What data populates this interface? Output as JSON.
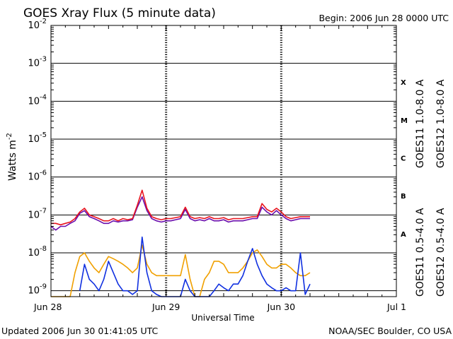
{
  "chart_data": {
    "type": "line",
    "title": "GOES Xray Flux (5 minute data)",
    "begin": "Begin:  2006 Jun 28 0000 UTC",
    "xlabel": "Universal Time",
    "ylabel": "Watts m",
    "ylabel_exp": "-2",
    "updated": "Updated 2006 Jun 30 01:41:05 UTC",
    "credit": "NOAA/SEC Boulder, CO USA",
    "x_ticks": [
      "Jun 28",
      "Jun 29",
      "Jun 30",
      "Jul 1"
    ],
    "xlim": [
      0,
      72
    ],
    "y_scale": "log",
    "ylim": [
      7e-10,
      0.01
    ],
    "y_ticks": [
      {
        "base": "10",
        "exp": "-2",
        "value": 0.01
      },
      {
        "base": "10",
        "exp": "-3",
        "value": 0.001
      },
      {
        "base": "10",
        "exp": "-4",
        "value": 0.0001
      },
      {
        "base": "10",
        "exp": "-5",
        "value": 1e-05
      },
      {
        "base": "10",
        "exp": "-6",
        "value": 1e-06
      },
      {
        "base": "10",
        "exp": "-7",
        "value": 1e-07
      },
      {
        "base": "10",
        "exp": "-8",
        "value": 1e-08
      },
      {
        "base": "10",
        "exp": "-9",
        "value": 1e-09
      }
    ],
    "flare_classes": [
      {
        "label": "X",
        "value": 0.00032
      },
      {
        "label": "M",
        "value": 3.2e-05
      },
      {
        "label": "C",
        "value": 3.2e-06
      },
      {
        "label": "B",
        "value": 3.2e-07
      },
      {
        "label": "A",
        "value": 3.2e-08
      }
    ],
    "series": [
      {
        "name": "GOES11 1.0-8.0 A",
        "color": "#6a0dad",
        "x": [
          0,
          1,
          2,
          3,
          4,
          5,
          6,
          7,
          8,
          9,
          10,
          11,
          12,
          13,
          14,
          15,
          16,
          17,
          18,
          19,
          20,
          21,
          22,
          23,
          24,
          25,
          26,
          27,
          28,
          29,
          30,
          31,
          32,
          33,
          34,
          35,
          36,
          37,
          38,
          39,
          40,
          41,
          42,
          43,
          44,
          45,
          46,
          47,
          48,
          49,
          50,
          51,
          52,
          53,
          54
        ],
        "values": [
          5e-08,
          4e-08,
          5e-08,
          5e-08,
          6e-08,
          7e-08,
          1.1e-07,
          1.3e-07,
          9e-08,
          8e-08,
          7e-08,
          6e-08,
          6e-08,
          7e-08,
          6.5e-08,
          7e-08,
          7e-08,
          7.5e-08,
          1.6e-07,
          3e-07,
          1.3e-07,
          8e-08,
          7e-08,
          6.5e-08,
          7e-08,
          7e-08,
          7.5e-08,
          8e-08,
          1.4e-07,
          8e-08,
          7e-08,
          7.5e-08,
          7e-08,
          8e-08,
          7e-08,
          7e-08,
          7.5e-08,
          6.5e-08,
          7e-08,
          7e-08,
          7e-08,
          7.5e-08,
          8e-08,
          8e-08,
          1.6e-07,
          1.2e-07,
          1e-07,
          1.3e-07,
          1e-07,
          8e-08,
          7e-08,
          7.5e-08,
          8e-08,
          8e-08,
          8e-08
        ]
      },
      {
        "name": "GOES12 1.0-8.0 A",
        "color": "#e8141e",
        "x": [
          0,
          1,
          2,
          3,
          4,
          5,
          6,
          7,
          8,
          9,
          10,
          11,
          12,
          13,
          14,
          15,
          16,
          17,
          18,
          19,
          20,
          21,
          22,
          23,
          24,
          25,
          26,
          27,
          28,
          29,
          30,
          31,
          32,
          33,
          34,
          35,
          36,
          37,
          38,
          39,
          40,
          41,
          42,
          43,
          44,
          45,
          46,
          47,
          48,
          49,
          50,
          51,
          52,
          53,
          54
        ],
        "values": [
          6e-08,
          6e-08,
          5.5e-08,
          6e-08,
          6.5e-08,
          8e-08,
          1.2e-07,
          1.5e-07,
          1e-07,
          9e-08,
          8e-08,
          7e-08,
          7e-08,
          8e-08,
          7e-08,
          8e-08,
          7.5e-08,
          8e-08,
          1.8e-07,
          4.5e-07,
          1.5e-07,
          9e-08,
          8e-08,
          7.5e-08,
          8e-08,
          8e-08,
          8.5e-08,
          9e-08,
          1.6e-07,
          9e-08,
          8e-08,
          8.5e-08,
          8e-08,
          9e-08,
          8e-08,
          8e-08,
          8.5e-08,
          7.5e-08,
          8e-08,
          8e-08,
          8e-08,
          8.5e-08,
          9e-08,
          9e-08,
          2e-07,
          1.4e-07,
          1.2e-07,
          1.5e-07,
          1.2e-07,
          9e-08,
          8e-08,
          8.5e-08,
          9e-08,
          9e-08,
          9e-08
        ]
      },
      {
        "name": "GOES11 0.5-4.0 A",
        "color": "#f0a000",
        "x": [
          0,
          2,
          4,
          5,
          6,
          7,
          8,
          9,
          10,
          11,
          12,
          13,
          14,
          15,
          16,
          17,
          18,
          19,
          20,
          21,
          22,
          23,
          24,
          25,
          26,
          27,
          28,
          29,
          30,
          31,
          32,
          33,
          34,
          35,
          36,
          37,
          38,
          39,
          40,
          41,
          42,
          43,
          44,
          45,
          46,
          47,
          48,
          49,
          50,
          51,
          52,
          53,
          54
        ],
        "values": [
          7e-10,
          7e-10,
          7e-10,
          3e-09,
          8e-09,
          1e-08,
          6e-09,
          4e-09,
          3e-09,
          5e-09,
          8e-09,
          7e-09,
          6e-09,
          5e-09,
          4e-09,
          3e-09,
          4e-09,
          1.6e-08,
          5e-09,
          3e-09,
          2.5e-09,
          2.5e-09,
          2.5e-09,
          2.5e-09,
          2.5e-09,
          2.5e-09,
          9e-09,
          2e-09,
          7e-10,
          7e-10,
          2e-09,
          3e-09,
          6e-09,
          6e-09,
          5e-09,
          3e-09,
          3e-09,
          3e-09,
          4e-09,
          6e-09,
          1e-08,
          1.2e-08,
          8e-09,
          5e-09,
          4e-09,
          4e-09,
          5e-09,
          5e-09,
          4e-09,
          3e-09,
          2.5e-09,
          2.5e-09,
          3e-09
        ]
      },
      {
        "name": "GOES12 0.5-4.0 A",
        "color": "#1030e0",
        "x": [
          6,
          7,
          8,
          9,
          10,
          11,
          12,
          13,
          14,
          15,
          16,
          17,
          18,
          19,
          20,
          21,
          22,
          23,
          24,
          25,
          26,
          27,
          28,
          29,
          30,
          31,
          32,
          33,
          34,
          35,
          36,
          37,
          38,
          39,
          40,
          41,
          42,
          43,
          44,
          45,
          46,
          47,
          48,
          49,
          50,
          51,
          52,
          53,
          54
        ],
        "values": [
          1e-09,
          5e-09,
          2e-09,
          1.5e-09,
          1e-09,
          2e-09,
          6e-09,
          3e-09,
          1.5e-09,
          1e-09,
          1e-09,
          8e-10,
          1e-09,
          2.6e-08,
          3e-09,
          1e-09,
          8e-10,
          7e-10,
          7e-10,
          7e-10,
          7e-10,
          7e-10,
          2e-09,
          1e-09,
          7e-10,
          7e-10,
          7e-10,
          7e-10,
          1e-09,
          1.5e-09,
          1.2e-09,
          1e-09,
          1.5e-09,
          1.5e-09,
          2.5e-09,
          6e-09,
          1.3e-08,
          5e-09,
          2.5e-09,
          1.5e-09,
          1.2e-09,
          1e-09,
          1e-09,
          1.2e-09,
          1e-09,
          1e-09,
          1e-08,
          8e-10,
          1.5e-09
        ]
      }
    ]
  }
}
